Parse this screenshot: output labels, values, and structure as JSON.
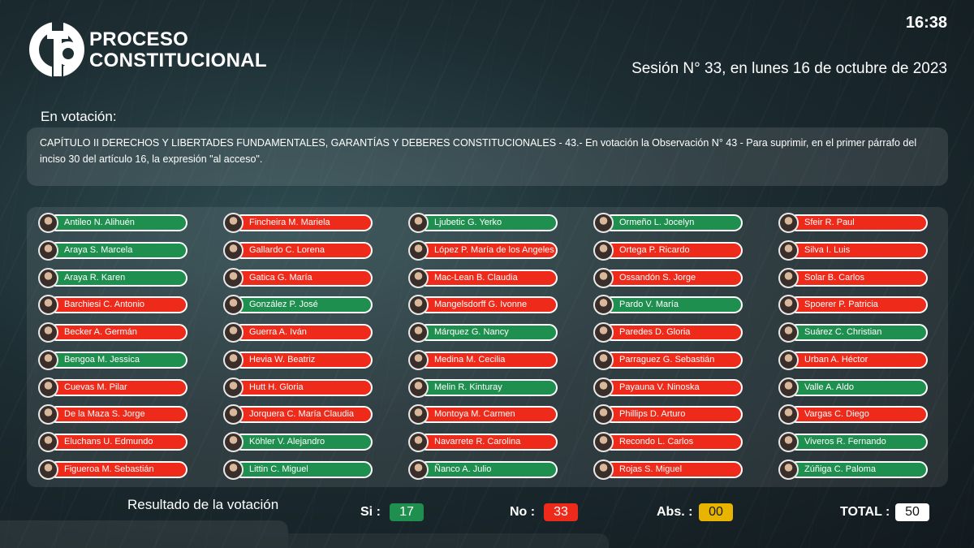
{
  "header": {
    "brand_line1": "PROCESO",
    "brand_line2": "CONSTITUCIONAL",
    "clock": "16:38",
    "session": "Sesión N° 33, en lunes 16 de octubre de 2023"
  },
  "motion": {
    "label": "En votación:",
    "text": "CAPÍTULO II DERECHOS Y LIBERTADES FUNDAMENTALES, GARANTÍAS Y DEBERES CONSTITUCIONALES - 43.- En votación la Observación N° 43 - Para suprimir, en el primer párrafo del inciso 30 del artículo 16, la expresión \"al acceso\"."
  },
  "colors": {
    "si": "#1e8f4e",
    "no": "#ee2a1b",
    "abs": "#e8b400"
  },
  "members": [
    [
      {
        "name": "Antileo N. Alihuén",
        "vote": "si"
      },
      {
        "name": "Araya S. Marcela",
        "vote": "si"
      },
      {
        "name": "Araya R. Karen",
        "vote": "si"
      },
      {
        "name": "Barchiesi C. Antonio",
        "vote": "no"
      },
      {
        "name": "Becker A. Germán",
        "vote": "no"
      },
      {
        "name": "Bengoa M. Jessica",
        "vote": "si"
      },
      {
        "name": "Cuevas M. Pilar",
        "vote": "no"
      },
      {
        "name": "De la Maza S. Jorge",
        "vote": "no"
      },
      {
        "name": "Eluchans U. Edmundo",
        "vote": "no"
      },
      {
        "name": "Figueroa M. Sebastián",
        "vote": "no"
      }
    ],
    [
      {
        "name": "Fincheira M. Mariela",
        "vote": "no"
      },
      {
        "name": "Gallardo C. Lorena",
        "vote": "no"
      },
      {
        "name": "Gatica G. María",
        "vote": "no"
      },
      {
        "name": "González P. José",
        "vote": "si"
      },
      {
        "name": "Guerra A. Iván",
        "vote": "no"
      },
      {
        "name": "Hevia W. Beatriz",
        "vote": "no"
      },
      {
        "name": "Hutt H. Gloria",
        "vote": "no"
      },
      {
        "name": "Jorquera C. María Claudia",
        "vote": "no"
      },
      {
        "name": "Köhler V. Alejandro",
        "vote": "si"
      },
      {
        "name": "Littin C. Miguel",
        "vote": "si"
      }
    ],
    [
      {
        "name": "Ljubetic G. Yerko",
        "vote": "si"
      },
      {
        "name": "López P. María de los Angeles",
        "vote": "no"
      },
      {
        "name": "Mac-Lean B. Claudia",
        "vote": "no"
      },
      {
        "name": "Mangelsdorff G. Ivonne",
        "vote": "no"
      },
      {
        "name": "Márquez G. Nancy",
        "vote": "si"
      },
      {
        "name": "Medina M. Cecilia",
        "vote": "no"
      },
      {
        "name": "Melin R. Kinturay",
        "vote": "si"
      },
      {
        "name": "Montoya M. Carmen",
        "vote": "no"
      },
      {
        "name": "Navarrete R. Carolina",
        "vote": "no"
      },
      {
        "name": "Ñanco A. Julio",
        "vote": "si"
      }
    ],
    [
      {
        "name": "Ormeño L. Jocelyn",
        "vote": "si"
      },
      {
        "name": "Ortega P. Ricardo",
        "vote": "no"
      },
      {
        "name": "Ossandón S. Jorge",
        "vote": "no"
      },
      {
        "name": "Pardo V. María",
        "vote": "si"
      },
      {
        "name": "Paredes D. Gloria",
        "vote": "no"
      },
      {
        "name": "Parraguez G. Sebastián",
        "vote": "no"
      },
      {
        "name": "Payauna V. Ninoska",
        "vote": "no"
      },
      {
        "name": "Phillips D. Arturo",
        "vote": "no"
      },
      {
        "name": "Recondo L. Carlos",
        "vote": "no"
      },
      {
        "name": "Rojas S. Miguel",
        "vote": "no"
      }
    ],
    [
      {
        "name": "Sfeir R. Paul",
        "vote": "no"
      },
      {
        "name": "Silva I. Luis",
        "vote": "no"
      },
      {
        "name": "Solar B. Carlos",
        "vote": "no"
      },
      {
        "name": "Spoerer P. Patricia",
        "vote": "no"
      },
      {
        "name": "Suárez C. Christian",
        "vote": "si"
      },
      {
        "name": "Urban A. Héctor",
        "vote": "no"
      },
      {
        "name": "Valle A. Aldo",
        "vote": "si"
      },
      {
        "name": "Vargas C. Diego",
        "vote": "no"
      },
      {
        "name": "Viveros R. Fernando",
        "vote": "si"
      },
      {
        "name": "Zúñiga C. Paloma",
        "vote": "si"
      }
    ]
  ],
  "result": {
    "label": "Resultado de la votación",
    "si_label": "Si :",
    "si_value": "17",
    "no_label": "No :",
    "no_value": "33",
    "abs_label": "Abs. :",
    "abs_value": "00",
    "total_label": "TOTAL :",
    "total_value": "50"
  }
}
